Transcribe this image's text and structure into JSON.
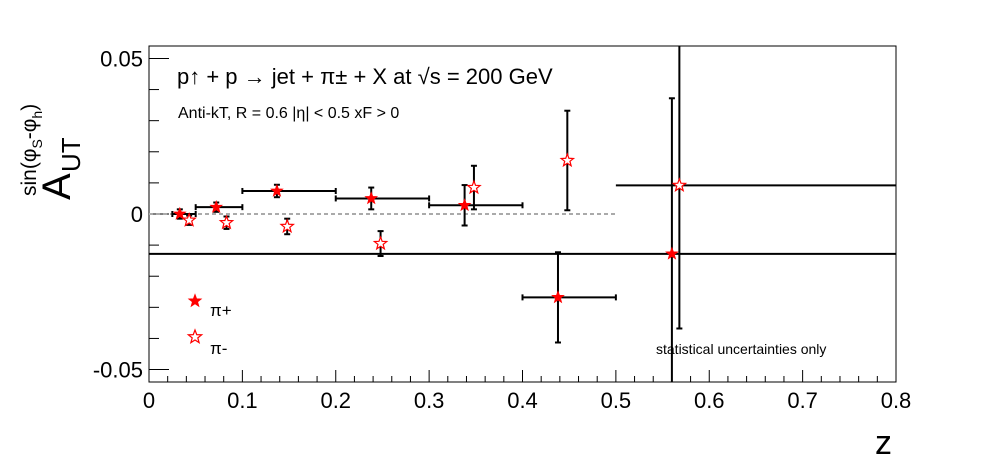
{
  "chart_data": {
    "type": "scatter",
    "title": "p↑ + p → jet + π± + X at  √s = 200 GeV",
    "subtitle": "Anti-kT, R = 0.6   |η| < 0.5   xF > 0",
    "xlabel": "z",
    "ylabel": "A_UT^{sin(φS-φh)}",
    "xlim": [
      0,
      0.8
    ],
    "ylim": [
      -0.054,
      0.054
    ],
    "x_ticks": [
      "0",
      "0.1",
      "0.2",
      "0.3",
      "0.4",
      "0.5",
      "0.6",
      "0.7",
      "0.8"
    ],
    "y_ticks": [
      "-0.05",
      "0",
      "0.05"
    ],
    "grid": false,
    "zero_line": "dotted",
    "legend_position": "bottom-left",
    "annotation": "statistical uncertainties only",
    "annotation_color": "#ff0000",
    "series": [
      {
        "name": "π+",
        "marker": "filled-star",
        "color": "#ff0000",
        "points": [
          {
            "x": 0.033,
            "y": 0.0,
            "xlo": 0.025,
            "xhi": 0.05,
            "err": 0.0015
          },
          {
            "x": 0.072,
            "y": 0.0022,
            "xlo": 0.05,
            "xhi": 0.1,
            "err": 0.0015
          },
          {
            "x": 0.137,
            "y": 0.0074,
            "xlo": 0.1,
            "xhi": 0.2,
            "err": 0.002
          },
          {
            "x": 0.238,
            "y": 0.005,
            "xlo": 0.2,
            "xhi": 0.3,
            "err": 0.0035
          },
          {
            "x": 0.338,
            "y": 0.0028,
            "xlo": 0.3,
            "xhi": 0.4,
            "err": 0.0065
          },
          {
            "x": 0.438,
            "y": -0.0268,
            "xlo": 0.4,
            "xhi": 0.5,
            "err": 0.0145
          },
          {
            "x": 0.56,
            "y": -0.0128,
            "xlo": 0.0,
            "xhi": 0.8,
            "err": 0.05
          }
        ]
      },
      {
        "name": "π-",
        "marker": "open-star",
        "color": "#ff0000",
        "points": [
          {
            "x": 0.043,
            "y": -0.002,
            "err": 0.0015
          },
          {
            "x": 0.083,
            "y": -0.0028,
            "err": 0.002
          },
          {
            "x": 0.148,
            "y": -0.004,
            "err": 0.0025
          },
          {
            "x": 0.248,
            "y": -0.0095,
            "err": 0.004
          },
          {
            "x": 0.348,
            "y": 0.0085,
            "err": 0.007
          },
          {
            "x": 0.448,
            "y": 0.0172,
            "err": 0.016
          },
          {
            "x": 0.568,
            "y": 0.0092,
            "xlo": 0.5,
            "xhi": 0.8,
            "err": 0.046
          }
        ]
      }
    ]
  }
}
